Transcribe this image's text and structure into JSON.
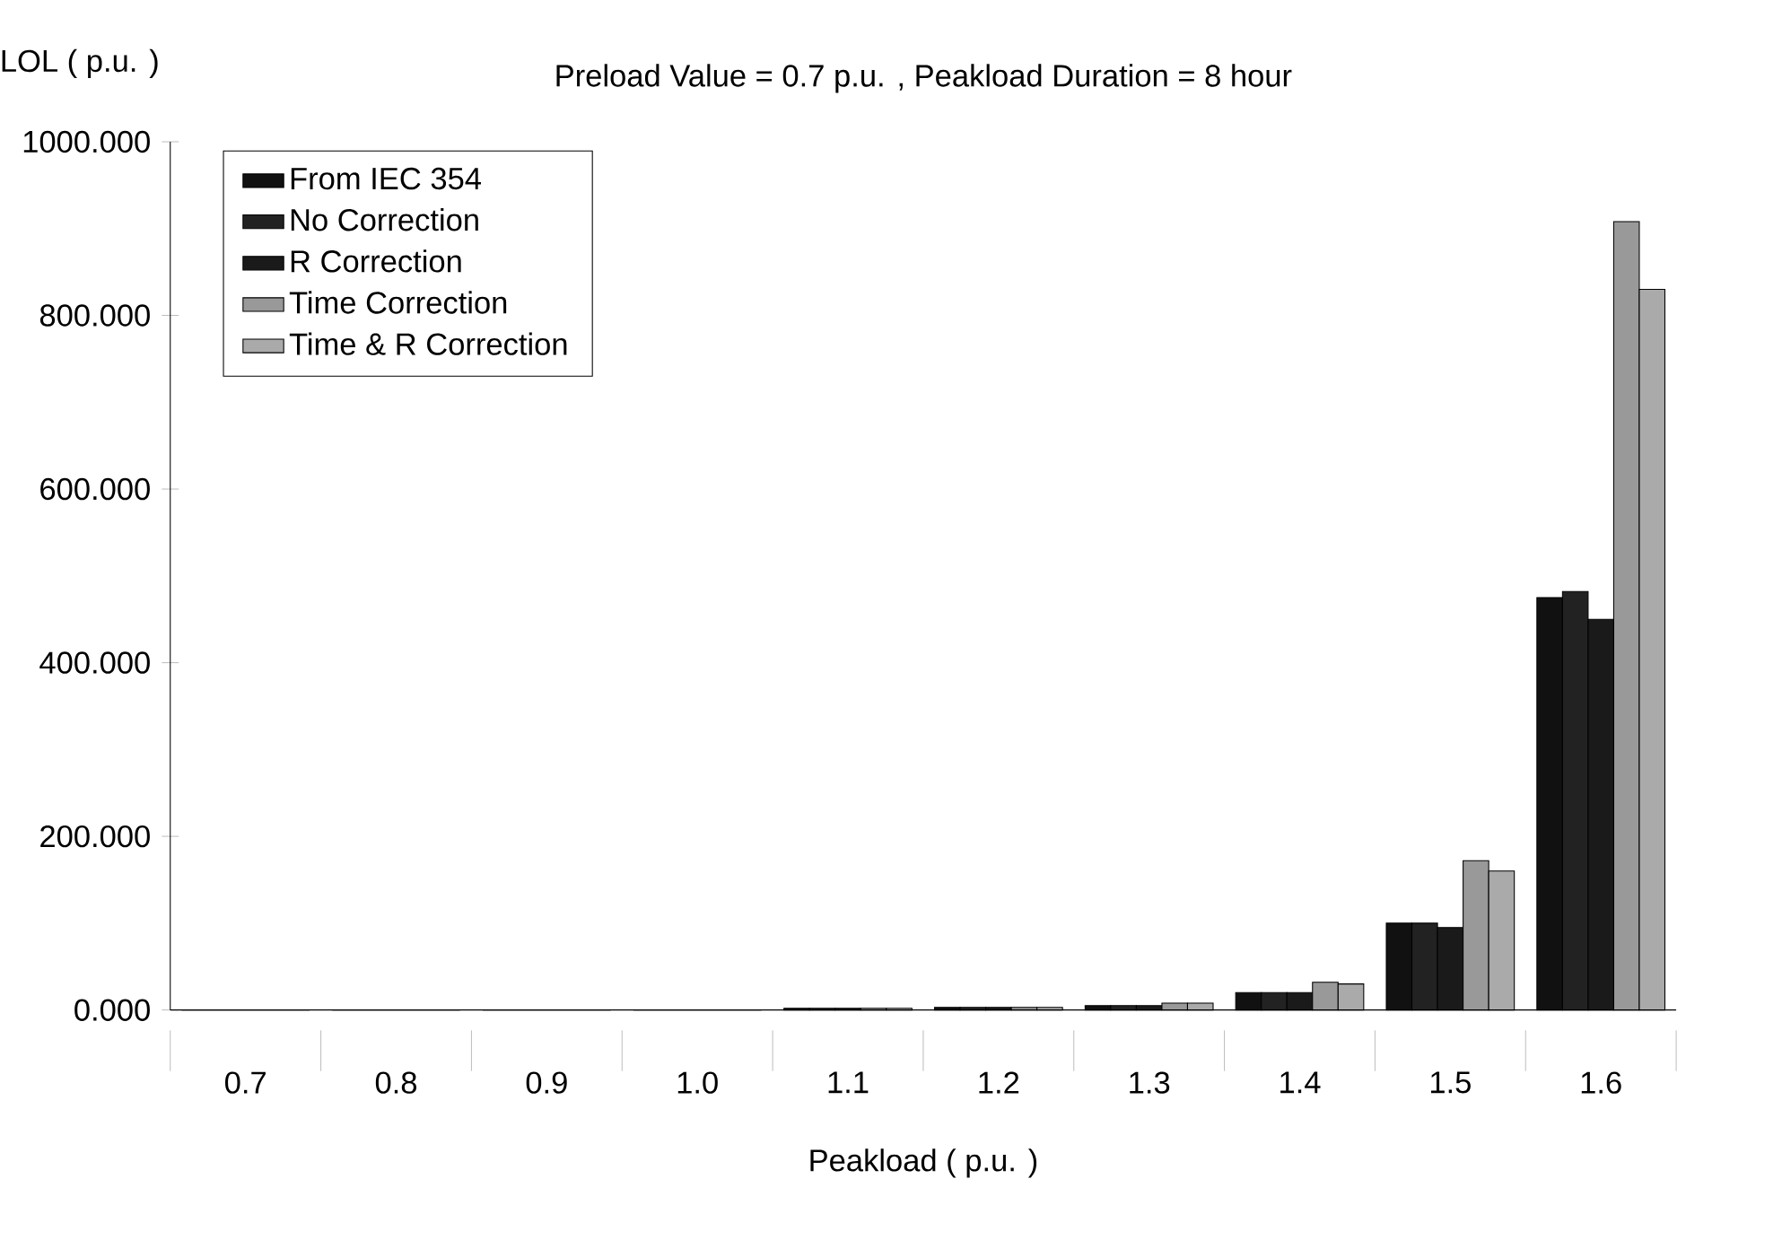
{
  "chart_data": {
    "type": "bar",
    "title": "Preload Value = 0.7 p.u. , Peakload Duration = 8 hour",
    "xlabel": "Peakload ( p.u. )",
    "ylabel": "LOL ( p.u. )",
    "categories": [
      "0.7",
      "0.8",
      "0.9",
      "1.0",
      "1.1",
      "1.2",
      "1.3",
      "1.4",
      "1.5",
      "1.6"
    ],
    "series": [
      {
        "name": "From IEC 354",
        "color": "#111111",
        "values": [
          0,
          0,
          0,
          0,
          2,
          3,
          5,
          20,
          100,
          475
        ]
      },
      {
        "name": "No Correction",
        "color": "#222222",
        "values": [
          0,
          0,
          0,
          0,
          2,
          3,
          5,
          20,
          100,
          482
        ]
      },
      {
        "name": "R Correction",
        "color": "#1a1a1a",
        "values": [
          0,
          0,
          0,
          0,
          2,
          3,
          5,
          20,
          95,
          450
        ]
      },
      {
        "name": "Time Correction",
        "color": "#999999",
        "values": [
          0,
          0,
          0,
          0,
          2,
          3,
          8,
          32,
          172,
          908
        ]
      },
      {
        "name": "Time & R Correction",
        "color": "#aaaaaa",
        "values": [
          0,
          0,
          0,
          0,
          2,
          3,
          8,
          30,
          160,
          830
        ]
      }
    ],
    "ylim": [
      0,
      1000
    ],
    "yticks": [
      {
        "value": 0,
        "label": "0.000"
      },
      {
        "value": 200,
        "label": "200.000"
      },
      {
        "value": 400,
        "label": "400.000"
      },
      {
        "value": 600,
        "label": "600.000"
      },
      {
        "value": 800,
        "label": "800.000"
      },
      {
        "value": 1000,
        "label": "1000.000"
      }
    ],
    "legend": "top left"
  }
}
